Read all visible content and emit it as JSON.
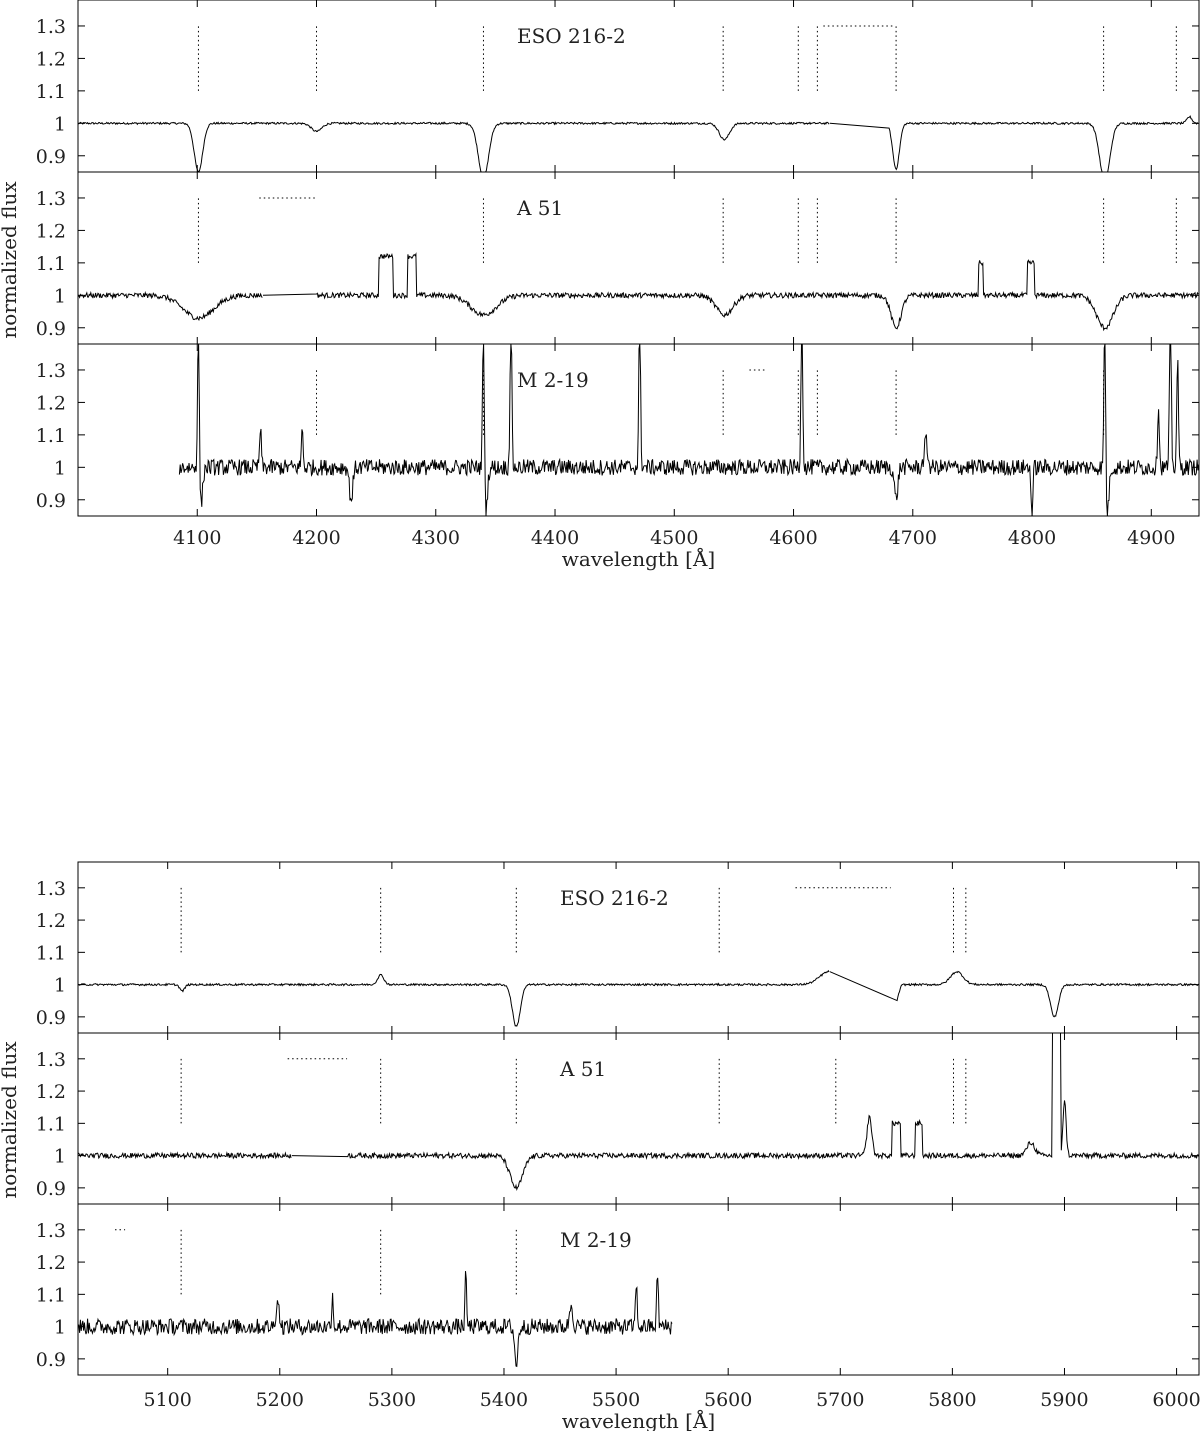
{
  "chart_data": [
    {
      "type": "line",
      "xlabel": "wavelength [Å]",
      "ylabel": "normalized flux",
      "xlim": [
        4000,
        4940
      ],
      "ylim": [
        0.85,
        1.38
      ],
      "x_ticks": [
        4100,
        4200,
        4300,
        4400,
        4500,
        4600,
        4700,
        4800,
        4900
      ],
      "y_ticks": [
        0.9,
        1.0,
        1.1,
        1.2,
        1.3
      ],
      "y_tick_labels": [
        "0.9",
        "1",
        "1.1",
        "1.2",
        "1.3"
      ],
      "panels": [
        {
          "label": "ESO 216-2",
          "x_start": 4000,
          "x_end": 4940,
          "gaps": [
            [
              4630,
              4680
            ]
          ],
          "noise": 0.003,
          "features": [
            {
              "center": 4101,
              "depth": -0.15,
              "width": 5
            },
            {
              "center": 4200,
              "depth": -0.025,
              "width": 6
            },
            {
              "center": 4340,
              "depth": -0.17,
              "width": 6
            },
            {
              "center": 4542,
              "depth": -0.05,
              "width": 6
            },
            {
              "center": 4686,
              "depth": -0.14,
              "width": 4
            },
            {
              "center": 4861,
              "depth": -0.18,
              "width": 6
            },
            {
              "center": 4932,
              "depth": 0.02,
              "width": 3
            }
          ],
          "line_markers": [
            4101,
            4200,
            4340,
            4541,
            4604,
            4620,
            4686,
            4860,
            4921
          ],
          "hbar": {
            "x_start": 4625,
            "x_end": 4685,
            "y": 1.3
          }
        },
        {
          "label": "A 51",
          "x_start": 4000,
          "x_end": 4940,
          "gaps": [
            [
              4155,
              4200
            ]
          ],
          "noise": 0.008,
          "features": [
            {
              "center": 4101,
              "depth": -0.07,
              "width": 18
            },
            {
              "center": 4340,
              "depth": -0.06,
              "width": 15
            },
            {
              "center": 4542,
              "depth": -0.06,
              "width": 10
            },
            {
              "center": 4686,
              "depth": -0.1,
              "width": 6
            },
            {
              "center": 4861,
              "depth": -0.1,
              "width": 10
            },
            {
              "center": 4258,
              "depth": 0.12,
              "width": 6,
              "box": true
            },
            {
              "center": 4280,
              "depth": 0.12,
              "width": 4,
              "box": true
            },
            {
              "center": 4757,
              "depth": 0.1,
              "width": 2,
              "box": true
            },
            {
              "center": 4799,
              "depth": 0.1,
              "width": 3,
              "box": true
            }
          ],
          "line_markers": [
            4101,
            4340,
            4541,
            4604,
            4620,
            4686,
            4860,
            4921
          ],
          "hbar": {
            "x_start": 4152,
            "x_end": 4200,
            "y": 1.3
          }
        },
        {
          "label": "M 2-19",
          "x_start": 4085,
          "x_end": 4940,
          "gaps": [],
          "noise": 0.025,
          "features": [
            {
              "center": 4101,
              "depth": 0.5,
              "width": 1
            },
            {
              "center": 4103,
              "depth": -0.12,
              "width": 2
            },
            {
              "center": 4340,
              "depth": 0.5,
              "width": 1
            },
            {
              "center": 4342,
              "depth": -0.13,
              "width": 2
            },
            {
              "center": 4363,
              "depth": 0.5,
              "width": 1
            },
            {
              "center": 4471,
              "depth": 0.5,
              "width": 1
            },
            {
              "center": 4607,
              "depth": 0.5,
              "width": 1
            },
            {
              "center": 4861,
              "depth": 0.5,
              "width": 1
            },
            {
              "center": 4863,
              "depth": -0.15,
              "width": 2
            },
            {
              "center": 4906,
              "depth": 0.2,
              "width": 1
            },
            {
              "center": 4916,
              "depth": 0.5,
              "width": 1
            },
            {
              "center": 4922,
              "depth": 0.33,
              "width": 1
            },
            {
              "center": 4153,
              "depth": 0.12,
              "width": 1
            },
            {
              "center": 4188,
              "depth": 0.12,
              "width": 1
            },
            {
              "center": 4686,
              "depth": -0.1,
              "width": 2
            },
            {
              "center": 4711,
              "depth": 0.08,
              "width": 2
            },
            {
              "center": 4800,
              "depth": -0.15,
              "width": 1
            },
            {
              "center": 4229,
              "depth": -0.1,
              "width": 2
            }
          ],
          "line_markers": [
            4200,
            4340,
            4541,
            4604,
            4620,
            4686,
            4860
          ],
          "hbar": {
            "x_start": 4563,
            "x_end": 4577,
            "y": 1.3
          }
        }
      ]
    },
    {
      "type": "line",
      "xlabel": "wavelength [Å]",
      "ylabel": "normalized flux",
      "xlim": [
        5020,
        6020
      ],
      "ylim": [
        0.85,
        1.38
      ],
      "x_ticks": [
        5100,
        5200,
        5300,
        5400,
        5500,
        5600,
        5700,
        5800,
        5900,
        6000
      ],
      "y_ticks": [
        0.9,
        1.0,
        1.1,
        1.2,
        1.3
      ],
      "y_tick_labels": [
        "0.9",
        "1",
        "1.1",
        "1.2",
        "1.3"
      ],
      "panels": [
        {
          "label": "ESO 216-2",
          "x_start": 5020,
          "x_end": 6020,
          "gaps": [
            [
              5690,
              5750
            ]
          ],
          "noise": 0.003,
          "features": [
            {
              "center": 5411,
              "depth": -0.13,
              "width": 5
            },
            {
              "center": 5290,
              "depth": 0.03,
              "width": 4
            },
            {
              "center": 5113,
              "depth": -0.02,
              "width": 3
            },
            {
              "center": 5690,
              "depth": 0.04,
              "width": 12
            },
            {
              "center": 5804,
              "depth": 0.04,
              "width": 8
            },
            {
              "center": 5891,
              "depth": -0.1,
              "width": 5
            },
            {
              "center": 5750,
              "depth": -0.05,
              "width": 3
            }
          ],
          "line_markers": [
            5112,
            5290,
            5411,
            5592,
            5801,
            5812
          ],
          "hbar": {
            "x_start": 5660,
            "x_end": 5745,
            "y": 1.3
          }
        },
        {
          "label": "A 51",
          "x_start": 5020,
          "x_end": 6020,
          "gaps": [
            [
              5210,
              5260
            ]
          ],
          "noise": 0.008,
          "features": [
            {
              "center": 5411,
              "depth": -0.1,
              "width": 8
            },
            {
              "center": 5726,
              "depth": 0.12,
              "width": 3
            },
            {
              "center": 5750,
              "depth": 0.1,
              "width": 4,
              "box": true
            },
            {
              "center": 5770,
              "depth": 0.1,
              "width": 3,
              "box": true
            },
            {
              "center": 5893,
              "depth": 0.45,
              "width": 4,
              "box": true
            },
            {
              "center": 5900,
              "depth": 0.17,
              "width": 2
            },
            {
              "center": 5870,
              "depth": 0.04,
              "width": 5
            }
          ],
          "line_markers": [
            5112,
            5290,
            5411,
            5592,
            5696,
            5801,
            5812
          ],
          "hbar": {
            "x_start": 5207,
            "x_end": 5260,
            "y": 1.3
          }
        },
        {
          "label": "M 2-19",
          "x_start": 5020,
          "x_end": 5550,
          "gaps": [],
          "noise": 0.025,
          "features": [
            {
              "center": 5366,
              "depth": 0.16,
              "width": 1
            },
            {
              "center": 5411,
              "depth": -0.12,
              "width": 2
            },
            {
              "center": 5518,
              "depth": 0.14,
              "width": 1
            },
            {
              "center": 5537,
              "depth": 0.17,
              "width": 1
            },
            {
              "center": 5247,
              "depth": 0.1,
              "width": 1
            },
            {
              "center": 5198,
              "depth": 0.08,
              "width": 2
            },
            {
              "center": 5460,
              "depth": 0.07,
              "width": 2
            }
          ],
          "line_markers": [
            5112,
            5290,
            5411
          ],
          "hbar": {
            "x_start": 5053,
            "x_end": 5062,
            "y": 1.3
          }
        }
      ]
    }
  ]
}
